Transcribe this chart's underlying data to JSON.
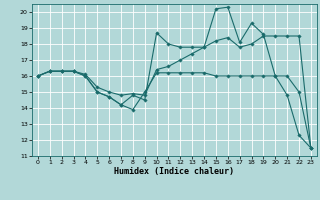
{
  "xlabel": "Humidex (Indice chaleur)",
  "bg_color": "#b2d8d8",
  "grid_color": "#ffffff",
  "line_color": "#1a6b6b",
  "ylim": [
    11,
    20.5
  ],
  "xlim": [
    -0.5,
    23.5
  ],
  "yticks": [
    11,
    12,
    13,
    14,
    15,
    16,
    17,
    18,
    19,
    20
  ],
  "xticks": [
    0,
    1,
    2,
    3,
    4,
    5,
    6,
    7,
    8,
    9,
    10,
    11,
    12,
    13,
    14,
    15,
    16,
    17,
    18,
    19,
    20,
    21,
    22,
    23
  ],
  "series1_x": [
    0,
    1,
    2,
    3,
    4,
    5,
    6,
    7,
    8,
    9,
    10,
    11,
    12,
    13,
    14,
    15,
    16,
    17,
    18,
    19,
    20,
    21,
    22,
    23
  ],
  "series1_y": [
    16.0,
    16.3,
    16.3,
    16.3,
    16.0,
    15.0,
    14.7,
    14.2,
    13.9,
    15.0,
    16.2,
    16.2,
    16.2,
    16.2,
    16.2,
    16.0,
    16.0,
    16.0,
    16.0,
    16.0,
    16.0,
    16.0,
    15.0,
    11.5
  ],
  "series2_x": [
    0,
    1,
    2,
    3,
    4,
    5,
    6,
    7,
    8,
    9,
    10,
    11,
    12,
    13,
    14,
    15,
    16,
    17,
    18,
    19,
    20,
    21,
    22,
    23
  ],
  "series2_y": [
    16.0,
    16.3,
    16.3,
    16.3,
    16.0,
    15.0,
    14.7,
    14.2,
    14.8,
    14.5,
    18.7,
    18.0,
    17.8,
    17.8,
    17.8,
    20.2,
    20.3,
    18.1,
    19.3,
    18.6,
    16.0,
    14.8,
    12.3,
    11.5
  ],
  "series3_x": [
    0,
    1,
    2,
    3,
    4,
    5,
    6,
    7,
    8,
    9,
    10,
    11,
    12,
    13,
    14,
    15,
    16,
    17,
    18,
    19,
    20,
    21,
    22,
    23
  ],
  "series3_y": [
    16.0,
    16.3,
    16.3,
    16.3,
    16.1,
    15.3,
    15.0,
    14.8,
    14.9,
    14.8,
    16.4,
    16.6,
    17.0,
    17.4,
    17.8,
    18.2,
    18.4,
    17.8,
    18.0,
    18.5,
    18.5,
    18.5,
    18.5,
    11.5
  ]
}
